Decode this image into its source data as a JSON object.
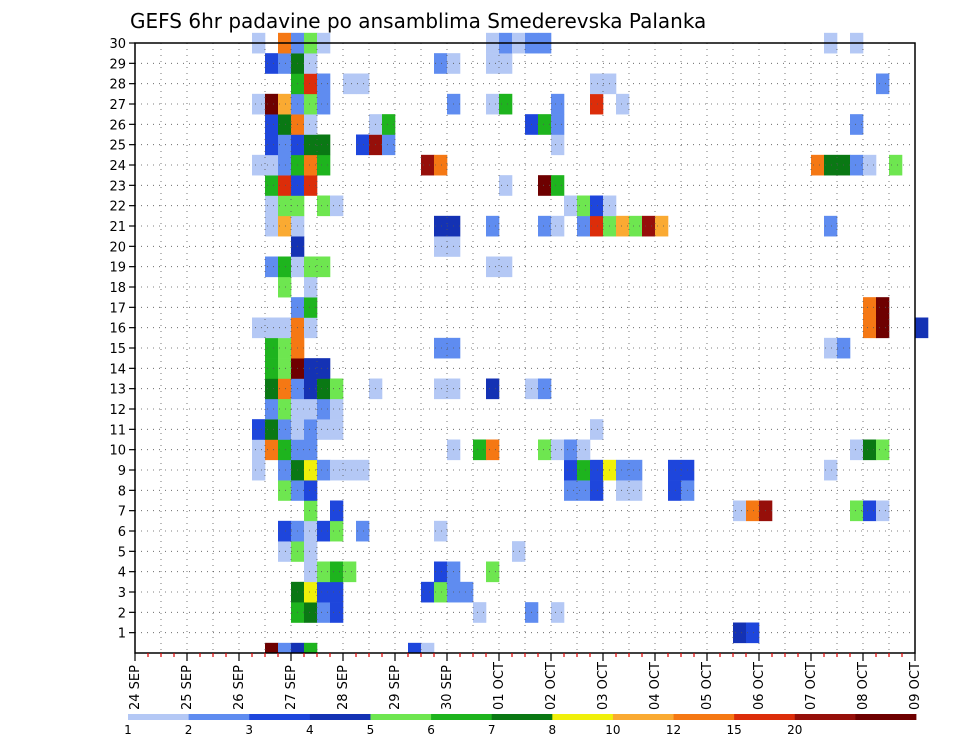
{
  "chart_data": {
    "type": "heatmap",
    "title": "GEFS 6hr padavine po ansamblima Smederevska Palanka",
    "x_tick_labels": [
      "24 SEP",
      "25 SEP",
      "26 SEP",
      "27 SEP",
      "28 SEP",
      "29 SEP",
      "30 SEP",
      "01 OCT",
      "02 OCT",
      "03 OCT",
      "04 OCT",
      "05 OCT",
      "06 OCT",
      "07 OCT",
      "08 OCT",
      "09 OCT"
    ],
    "y_tick_labels": [
      "1",
      "2",
      "3",
      "4",
      "5",
      "6",
      "7",
      "8",
      "9",
      "10",
      "11",
      "12",
      "13",
      "14",
      "15",
      "16",
      "17",
      "18",
      "19",
      "20",
      "21",
      "22",
      "23",
      "24",
      "25",
      "26",
      "27",
      "28",
      "29",
      "30"
    ],
    "x_range_days": [
      0,
      15
    ],
    "y_range": [
      0,
      30
    ],
    "time_step_hours": 6,
    "grid": true,
    "legend_placement": "bottom",
    "legend": {
      "boundaries": [
        "1",
        "2",
        "3",
        "4",
        "5",
        "6",
        "7",
        "8",
        "10",
        "12",
        "15",
        "20"
      ],
      "colors": [
        "#b4c8f5",
        "#5f8cf0",
        "#1e46dc",
        "#1432b4",
        "#6ee650",
        "#1eb41e",
        "#0a7814",
        "#f0f00a",
        "#faaa32",
        "#f57814",
        "#dc2d0a",
        "#960f0a",
        "#6e0000"
      ]
    },
    "ensemble_cells": [
      {
        "m": 1,
        "cells": [
          [
            11.5,
            4
          ],
          [
            11.75,
            3
          ]
        ]
      },
      {
        "m": 2,
        "cells": [
          [
            3,
            6
          ],
          [
            3.25,
            7
          ],
          [
            3.5,
            2
          ],
          [
            3.75,
            3
          ],
          [
            6.5,
            1
          ],
          [
            7.5,
            2
          ],
          [
            8,
            1
          ]
        ]
      },
      {
        "m": 3,
        "cells": [
          [
            3,
            7
          ],
          [
            3.25,
            8
          ],
          [
            3.5,
            3
          ],
          [
            3.75,
            3
          ],
          [
            5.5,
            3
          ],
          [
            5.75,
            5
          ],
          [
            6,
            2
          ],
          [
            6.25,
            2
          ]
        ]
      },
      {
        "m": 4,
        "cells": [
          [
            3.25,
            1
          ],
          [
            3.5,
            5
          ],
          [
            3.75,
            6
          ],
          [
            4,
            5
          ],
          [
            5.75,
            3
          ],
          [
            6,
            2
          ],
          [
            6.75,
            5
          ]
        ]
      },
      {
        "m": 5,
        "cells": [
          [
            2.75,
            1
          ],
          [
            3,
            5
          ],
          [
            3.25,
            1
          ],
          [
            7.25,
            1
          ]
        ]
      },
      {
        "m": 6,
        "cells": [
          [
            2.75,
            3
          ],
          [
            3,
            2
          ],
          [
            3.25,
            1
          ],
          [
            3.5,
            3
          ],
          [
            3.75,
            5
          ],
          [
            4.25,
            2
          ],
          [
            5.75,
            1
          ]
        ]
      },
      {
        "m": 7,
        "cells": [
          [
            3.25,
            5
          ],
          [
            3.75,
            3
          ],
          [
            11.5,
            1
          ],
          [
            11.75,
            10
          ],
          [
            12,
            12
          ],
          [
            13.75,
            5
          ],
          [
            14,
            3
          ],
          [
            14.25,
            1
          ]
        ]
      },
      {
        "m": 8,
        "cells": [
          [
            2.75,
            5
          ],
          [
            3,
            2
          ],
          [
            3.25,
            3
          ],
          [
            8.25,
            2
          ],
          [
            8.5,
            2
          ],
          [
            8.75,
            3
          ],
          [
            9.25,
            1
          ],
          [
            9.5,
            1
          ],
          [
            10.25,
            3
          ],
          [
            10.5,
            2
          ]
        ]
      },
      {
        "m": 9,
        "cells": [
          [
            2.25,
            1
          ],
          [
            2.75,
            2
          ],
          [
            3,
            7
          ],
          [
            3.25,
            8
          ],
          [
            3.5,
            2
          ],
          [
            3.75,
            1
          ],
          [
            4,
            1
          ],
          [
            4.25,
            1
          ],
          [
            8.25,
            3
          ],
          [
            8.5,
            6
          ],
          [
            8.75,
            3
          ],
          [
            9,
            8
          ],
          [
            9.25,
            2
          ],
          [
            9.5,
            2
          ],
          [
            10.25,
            3
          ],
          [
            10.5,
            3
          ],
          [
            13.25,
            1
          ]
        ]
      },
      {
        "m": 10,
        "cells": [
          [
            2.25,
            1
          ],
          [
            2.5,
            10
          ],
          [
            2.75,
            6
          ],
          [
            3,
            2
          ],
          [
            3.25,
            2
          ],
          [
            6,
            1
          ],
          [
            6.5,
            6
          ],
          [
            6.75,
            10
          ],
          [
            7.75,
            5
          ],
          [
            8,
            1
          ],
          [
            8.25,
            2
          ],
          [
            8.5,
            1
          ],
          [
            13.75,
            1
          ],
          [
            14,
            7
          ],
          [
            14.25,
            5
          ]
        ]
      },
      {
        "m": 11,
        "cells": [
          [
            2.25,
            3
          ],
          [
            2.5,
            7
          ],
          [
            2.75,
            2
          ],
          [
            3,
            1
          ],
          [
            3.25,
            2
          ],
          [
            3.5,
            1
          ],
          [
            3.75,
            1
          ],
          [
            8.75,
            1
          ]
        ]
      },
      {
        "m": 12,
        "cells": [
          [
            2.5,
            2
          ],
          [
            2.75,
            5
          ],
          [
            3,
            1
          ],
          [
            3.25,
            1
          ],
          [
            3.5,
            2
          ],
          [
            3.75,
            1
          ]
        ]
      },
      {
        "m": 13,
        "cells": [
          [
            2.5,
            7
          ],
          [
            2.75,
            10
          ],
          [
            3,
            2
          ],
          [
            3.25,
            4
          ],
          [
            3.5,
            7
          ],
          [
            3.75,
            5
          ],
          [
            4.5,
            1
          ],
          [
            5.75,
            1
          ],
          [
            6,
            1
          ],
          [
            6.75,
            4
          ],
          [
            7.5,
            1
          ],
          [
            7.75,
            2
          ]
        ]
      },
      {
        "m": 14,
        "cells": [
          [
            2.5,
            6
          ],
          [
            2.75,
            5
          ],
          [
            3,
            13
          ],
          [
            3.25,
            4
          ],
          [
            3.5,
            4
          ]
        ]
      },
      {
        "m": 15,
        "cells": [
          [
            2.5,
            6
          ],
          [
            2.75,
            5
          ],
          [
            3,
            10
          ],
          [
            5.75,
            2
          ],
          [
            6,
            2
          ],
          [
            13.25,
            1
          ],
          [
            13.5,
            2
          ]
        ]
      },
      {
        "m": 16,
        "cells": [
          [
            2.25,
            1
          ],
          [
            2.5,
            1
          ],
          [
            2.75,
            1
          ],
          [
            3,
            10
          ],
          [
            3.25,
            1
          ],
          [
            14,
            10
          ],
          [
            14.25,
            13
          ],
          [
            15,
            4
          ]
        ]
      },
      {
        "m": 17,
        "cells": [
          [
            3,
            2
          ],
          [
            3.25,
            6
          ],
          [
            14,
            10
          ],
          [
            14.25,
            13
          ]
        ]
      },
      {
        "m": 18,
        "cells": [
          [
            2.75,
            5
          ],
          [
            3.25,
            1
          ]
        ]
      },
      {
        "m": 19,
        "cells": [
          [
            2.5,
            2
          ],
          [
            2.75,
            6
          ],
          [
            3,
            1
          ],
          [
            3.25,
            5
          ],
          [
            3.5,
            5
          ],
          [
            6.75,
            1
          ],
          [
            7,
            1
          ]
        ]
      },
      {
        "m": 20,
        "cells": [
          [
            3,
            4
          ],
          [
            5.75,
            1
          ],
          [
            6,
            1
          ]
        ]
      },
      {
        "m": 21,
        "cells": [
          [
            2.5,
            1
          ],
          [
            2.75,
            9
          ],
          [
            3,
            1
          ],
          [
            5.75,
            4
          ],
          [
            6,
            4
          ],
          [
            6.75,
            2
          ],
          [
            7.75,
            2
          ],
          [
            8,
            1
          ],
          [
            8.5,
            2
          ],
          [
            8.75,
            11
          ],
          [
            9,
            5
          ],
          [
            9.25,
            9
          ],
          [
            9.5,
            5
          ],
          [
            9.75,
            12
          ],
          [
            10,
            9
          ],
          [
            13.25,
            2
          ]
        ]
      },
      {
        "m": 22,
        "cells": [
          [
            2.5,
            1
          ],
          [
            2.75,
            5
          ],
          [
            3,
            5
          ],
          [
            3.5,
            5
          ],
          [
            3.75,
            1
          ],
          [
            8.25,
            1
          ],
          [
            8.5,
            5
          ],
          [
            8.75,
            3
          ],
          [
            9,
            1
          ]
        ]
      },
      {
        "m": 23,
        "cells": [
          [
            2.5,
            6
          ],
          [
            2.75,
            11
          ],
          [
            3,
            3
          ],
          [
            3.25,
            11
          ],
          [
            7,
            1
          ],
          [
            7.75,
            13
          ],
          [
            8,
            6
          ]
        ]
      },
      {
        "m": 24,
        "cells": [
          [
            2.25,
            1
          ],
          [
            2.5,
            1
          ],
          [
            2.75,
            2
          ],
          [
            3,
            6
          ],
          [
            3.25,
            10
          ],
          [
            3.5,
            6
          ],
          [
            5.5,
            12
          ],
          [
            5.75,
            10
          ],
          [
            13,
            10
          ],
          [
            13.25,
            7
          ],
          [
            13.5,
            7
          ],
          [
            13.75,
            2
          ],
          [
            14,
            1
          ],
          [
            14.5,
            5
          ]
        ]
      },
      {
        "m": 25,
        "cells": [
          [
            2.5,
            3
          ],
          [
            2.75,
            2
          ],
          [
            3,
            3
          ],
          [
            3.25,
            7
          ],
          [
            3.5,
            7
          ],
          [
            4.25,
            3
          ],
          [
            4.5,
            12
          ],
          [
            4.75,
            2
          ],
          [
            8,
            1
          ]
        ]
      },
      {
        "m": 26,
        "cells": [
          [
            2.5,
            3
          ],
          [
            2.75,
            7
          ],
          [
            3,
            10
          ],
          [
            3.25,
            1
          ],
          [
            4.5,
            1
          ],
          [
            4.75,
            6
          ],
          [
            7.5,
            3
          ],
          [
            7.75,
            6
          ],
          [
            8,
            2
          ],
          [
            13.75,
            2
          ]
        ]
      },
      {
        "m": 27,
        "cells": [
          [
            2.25,
            1
          ],
          [
            2.5,
            13
          ],
          [
            2.75,
            9
          ],
          [
            3,
            2
          ],
          [
            3.25,
            5
          ],
          [
            3.5,
            2
          ],
          [
            6,
            2
          ],
          [
            6.75,
            1
          ],
          [
            7,
            6
          ],
          [
            8,
            2
          ],
          [
            8.75,
            11
          ],
          [
            9.25,
            1
          ]
        ]
      },
      {
        "m": 28,
        "cells": [
          [
            3,
            6
          ],
          [
            3.25,
            11
          ],
          [
            3.5,
            2
          ],
          [
            4,
            1
          ],
          [
            4.25,
            1
          ],
          [
            8.75,
            1
          ],
          [
            9,
            1
          ],
          [
            14.25,
            2
          ]
        ]
      },
      {
        "m": 29,
        "cells": [
          [
            2.5,
            3
          ],
          [
            2.75,
            2
          ],
          [
            3,
            7
          ],
          [
            3.25,
            1
          ],
          [
            5.75,
            2
          ],
          [
            6,
            1
          ],
          [
            6.75,
            1
          ],
          [
            7,
            1
          ]
        ]
      },
      {
        "m": 30,
        "cells": [
          [
            2.25,
            1
          ],
          [
            2.75,
            10
          ],
          [
            3,
            2
          ],
          [
            3.25,
            5
          ],
          [
            3.5,
            1
          ],
          [
            6.75,
            1
          ],
          [
            7,
            2
          ],
          [
            7.25,
            1
          ],
          [
            7.5,
            2
          ],
          [
            7.75,
            2
          ],
          [
            13.25,
            1
          ],
          [
            13.75,
            1
          ]
        ]
      },
      {
        "m": 0,
        "cells": [
          [
            2.5,
            13
          ],
          [
            2.75,
            2
          ],
          [
            3,
            4
          ],
          [
            3.25,
            6
          ],
          [
            5.25,
            3
          ],
          [
            5.5,
            1
          ]
        ]
      }
    ]
  }
}
